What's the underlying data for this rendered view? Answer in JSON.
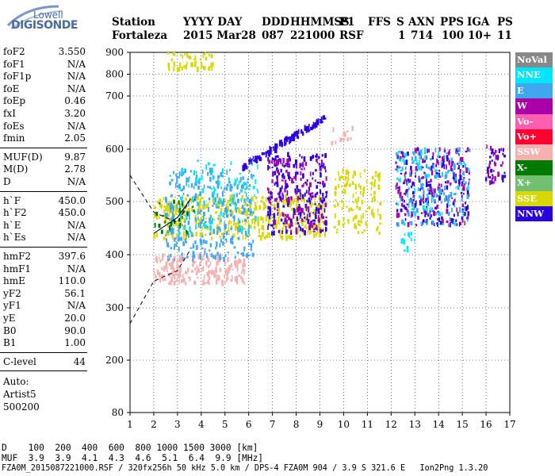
{
  "logo": {
    "top": "Lowell",
    "bottom": "DIGISONDE"
  },
  "header": {
    "labels": [
      "Station",
      "YYYY DAY",
      "DDD",
      "HHMMSS",
      "P1",
      "FFS",
      "S",
      "AXN",
      "PPS",
      "IGA",
      "PS"
    ],
    "station": "Fortaleza",
    "date": "2015 Mar28",
    "ddd": "087",
    "time": "221000",
    "p1": "RSF",
    "s": "1",
    "axn": "714",
    "pps": "100",
    "iga": "10+",
    "ps": "11"
  },
  "params": {
    "group1": [
      {
        "k": "foF2",
        "v": "3.550"
      },
      {
        "k": "foF1",
        "v": "N/A"
      },
      {
        "k": "foF1p",
        "v": "N/A"
      },
      {
        "k": "foE",
        "v": "N/A"
      },
      {
        "k": "foEp",
        "v": "0.46"
      },
      {
        "k": "fxI",
        "v": "3.20"
      },
      {
        "k": "foEs",
        "v": "N/A"
      },
      {
        "k": "fmin",
        "v": "2.05"
      }
    ],
    "group2": [
      {
        "k": "MUF(D)",
        "v": "9.87"
      },
      {
        "k": "M(D)",
        "v": "2.78"
      },
      {
        "k": "D",
        "v": "N/A"
      }
    ],
    "group3": [
      {
        "k": "h`F",
        "v": "450.0"
      },
      {
        "k": "h`F2",
        "v": "450.0"
      },
      {
        "k": "h`E",
        "v": "N/A"
      },
      {
        "k": "h`Es",
        "v": "N/A"
      }
    ],
    "group4": [
      {
        "k": "hmF2",
        "v": "397.6"
      },
      {
        "k": "hmF1",
        "v": "N/A"
      },
      {
        "k": "hmE",
        "v": "110.0"
      },
      {
        "k": "yF2",
        "v": "56.1"
      },
      {
        "k": "yF1",
        "v": "N/A"
      },
      {
        "k": "yE",
        "v": "20.0"
      },
      {
        "k": "B0",
        "v": "90.0"
      },
      {
        "k": "B1",
        "v": "1.00"
      }
    ],
    "clevel": {
      "k": "C-level",
      "v": "44"
    },
    "auto": [
      "Auto:",
      "Artist5",
      "500200"
    ]
  },
  "footer": {
    "d_row": "D    100  200  400  600  800 1000 1500 3000 [km]",
    "muf_row": "MUF  3.9  3.9  4.1  4.3  4.6  5.1  6.4  9.9 [MHz]",
    "info_row": "FZA0M_2015087221000.RSF / 320fx256h 50 kHz 5.0 km / DPS-4 FZA0M 904 / 3.9 S 321.6 E   Ion2Png 1.3.20"
  },
  "legend": [
    {
      "label": "NoVal",
      "color": "#888888"
    },
    {
      "label": "NNE",
      "color": "#00e5ff"
    },
    {
      "label": "E",
      "color": "#3fa7ee"
    },
    {
      "label": "W",
      "color": "#aa00aa"
    },
    {
      "label": "Vo-",
      "color": "#ff5fb0"
    },
    {
      "label": "Vo+",
      "color": "#ff0030"
    },
    {
      "label": "SSW",
      "color": "#f5b0b0"
    },
    {
      "label": "X-",
      "color": "#007a00"
    },
    {
      "label": "X+",
      "color": "#70c070"
    },
    {
      "label": "SSE",
      "color": "#d8d800"
    },
    {
      "label": "NNW",
      "color": "#2a00dd"
    }
  ],
  "chart_data": {
    "type": "scatter",
    "xlim": [
      1,
      17
    ],
    "ylim": [
      80,
      900
    ],
    "x_ticks": [
      1,
      2,
      3,
      4,
      5,
      6,
      7,
      8,
      9,
      10,
      11,
      12,
      13,
      14,
      15,
      16,
      17
    ],
    "y_ticks": [
      80,
      200,
      300,
      400,
      500,
      600,
      700,
      800,
      900
    ],
    "grid": true,
    "legend_position": "right",
    "clusters": [
      {
        "name": "SSW",
        "xr": [
          2.0,
          5.9
        ],
        "yr": [
          345,
          400
        ],
        "n": 220
      },
      {
        "name": "SSW",
        "xr": [
          9.5,
          10.4
        ],
        "yr": [
          610,
          640
        ],
        "n": 12
      },
      {
        "name": "SSE",
        "xr": [
          2.0,
          9.3
        ],
        "yr": [
          430,
          510
        ],
        "n": 420
      },
      {
        "name": "SSE",
        "xr": [
          9.6,
          11.6
        ],
        "yr": [
          440,
          560
        ],
        "n": 120
      },
      {
        "name": "E",
        "xr": [
          2.5,
          6.2
        ],
        "yr": [
          390,
          560
        ],
        "n": 320
      },
      {
        "name": "NNE",
        "xr": [
          3.0,
          6.5
        ],
        "yr": [
          440,
          580
        ],
        "n": 90
      },
      {
        "name": "NNW",
        "xr": [
          5.7,
          9.3
        ],
        "yr": [
          560,
          665
        ],
        "n": 130
      },
      {
        "name": "NNW",
        "xr": [
          6.8,
          9.3
        ],
        "yr": [
          440,
          590
        ],
        "n": 220
      },
      {
        "name": "W",
        "xr": [
          6.8,
          9.3
        ],
        "yr": [
          440,
          580
        ],
        "n": 120
      },
      {
        "name": "NNW",
        "xr": [
          12.2,
          15.3
        ],
        "yr": [
          455,
          600
        ],
        "n": 170
      },
      {
        "name": "E",
        "xr": [
          12.2,
          15.3
        ],
        "yr": [
          455,
          600
        ],
        "n": 140
      },
      {
        "name": "W",
        "xr": [
          12.2,
          15.3
        ],
        "yr": [
          455,
          600
        ],
        "n": 110
      },
      {
        "name": "NNE",
        "xr": [
          12.2,
          15.3
        ],
        "yr": [
          455,
          600
        ],
        "n": 70
      },
      {
        "name": "NNW",
        "xr": [
          16.0,
          16.8
        ],
        "yr": [
          535,
          600
        ],
        "n": 25
      },
      {
        "name": "W",
        "xr": [
          16.0,
          16.8
        ],
        "yr": [
          535,
          610
        ],
        "n": 20
      },
      {
        "name": "SSE",
        "xr": [
          2.6,
          4.5
        ],
        "yr": [
          820,
          900
        ],
        "n": 45
      },
      {
        "name": "NNE",
        "xr": [
          12.3,
          13.0
        ],
        "yr": [
          405,
          440
        ],
        "n": 14
      },
      {
        "name": "X-",
        "xr": [
          2.0,
          3.8
        ],
        "yr": [
          440,
          510
        ],
        "n": 25
      }
    ],
    "profile_lines": [
      {
        "name": "upper",
        "x": [
          1.0,
          2.0,
          3.0,
          3.55
        ],
        "y": [
          550,
          480,
          460,
          505
        ]
      },
      {
        "name": "lower",
        "x": [
          1.0,
          2.0,
          3.0,
          3.55
        ],
        "y": [
          270,
          350,
          370,
          410
        ]
      },
      {
        "name": "trace",
        "x": [
          2.0,
          3.0,
          3.55
        ],
        "y": [
          440,
          470,
          505
        ]
      }
    ]
  }
}
